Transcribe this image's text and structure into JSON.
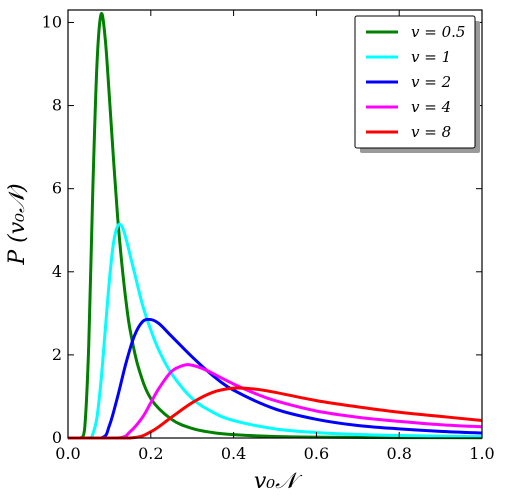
{
  "chart_data": {
    "type": "line",
    "title": "",
    "xlabel": "v₀𝒩",
    "ylabel": "P (v₀𝒩)",
    "xlim": [
      0.0,
      1.0
    ],
    "ylim": [
      0,
      10.3
    ],
    "xticks": [
      0.0,
      0.2,
      0.4,
      0.6,
      0.8,
      1.0
    ],
    "xtick_labels": [
      "0.0",
      "0.2",
      "0.4",
      "0.6",
      "0.8",
      "1.0"
    ],
    "yticks": [
      0,
      2,
      4,
      6,
      8,
      10
    ],
    "ytick_labels": [
      "0",
      "2",
      "4",
      "6",
      "8",
      "10"
    ],
    "grid": false,
    "legend_position": "top-right",
    "series": [
      {
        "name": "v = 0.5",
        "color": "#008000",
        "x": [
          0,
          0.03,
          0.04,
          0.05,
          0.06,
          0.07,
          0.08,
          0.09,
          0.1,
          0.11,
          0.12,
          0.13,
          0.14,
          0.15,
          0.17,
          0.2,
          0.25,
          0.3,
          0.35,
          0.4,
          0.5,
          0.6,
          0.8,
          1.0
        ],
        "y": [
          0,
          0,
          0.2,
          2.2,
          6.0,
          9.0,
          10.2,
          9.6,
          8.2,
          6.7,
          5.3,
          4.2,
          3.3,
          2.6,
          1.7,
          0.95,
          0.45,
          0.23,
          0.13,
          0.08,
          0.035,
          0.02,
          0.01,
          0.005
        ]
      },
      {
        "name": "v = 1",
        "color": "#00ffff",
        "x": [
          0,
          0.05,
          0.06,
          0.07,
          0.08,
          0.09,
          0.1,
          0.11,
          0.12,
          0.13,
          0.14,
          0.15,
          0.16,
          0.18,
          0.2,
          0.22,
          0.25,
          0.3,
          0.35,
          0.4,
          0.5,
          0.6,
          0.7,
          0.8,
          1.0
        ],
        "y": [
          0,
          0,
          0.1,
          0.5,
          1.4,
          2.6,
          3.8,
          4.7,
          5.1,
          5.1,
          4.8,
          4.4,
          4.0,
          3.2,
          2.6,
          2.1,
          1.55,
          0.95,
          0.62,
          0.42,
          0.22,
          0.13,
          0.085,
          0.06,
          0.03
        ]
      },
      {
        "name": "v = 2",
        "color": "#0000ff",
        "x": [
          0,
          0.08,
          0.1,
          0.12,
          0.14,
          0.16,
          0.18,
          0.2,
          0.22,
          0.25,
          0.3,
          0.35,
          0.4,
          0.5,
          0.6,
          0.7,
          0.8,
          0.9,
          1.0
        ],
        "y": [
          0,
          0,
          0.3,
          1.0,
          1.8,
          2.45,
          2.8,
          2.85,
          2.75,
          2.45,
          1.95,
          1.5,
          1.15,
          0.7,
          0.45,
          0.3,
          0.22,
          0.16,
          0.12
        ]
      },
      {
        "name": "v = 4",
        "color": "#ff00ff",
        "x": [
          0,
          0.12,
          0.15,
          0.18,
          0.2,
          0.22,
          0.25,
          0.28,
          0.3,
          0.33,
          0.36,
          0.4,
          0.45,
          0.5,
          0.6,
          0.7,
          0.8,
          0.9,
          1.0
        ],
        "y": [
          0,
          0,
          0.15,
          0.5,
          0.85,
          1.2,
          1.6,
          1.75,
          1.75,
          1.65,
          1.5,
          1.3,
          1.08,
          0.9,
          0.65,
          0.5,
          0.4,
          0.32,
          0.27
        ]
      },
      {
        "name": "v = 8",
        "color": "#ff0000",
        "x": [
          0,
          0.15,
          0.2,
          0.25,
          0.3,
          0.35,
          0.4,
          0.45,
          0.5,
          0.6,
          0.7,
          0.8,
          0.9,
          1.0
        ],
        "y": [
          0,
          0,
          0.15,
          0.5,
          0.85,
          1.1,
          1.2,
          1.18,
          1.1,
          0.9,
          0.75,
          0.62,
          0.52,
          0.42
        ]
      }
    ]
  }
}
